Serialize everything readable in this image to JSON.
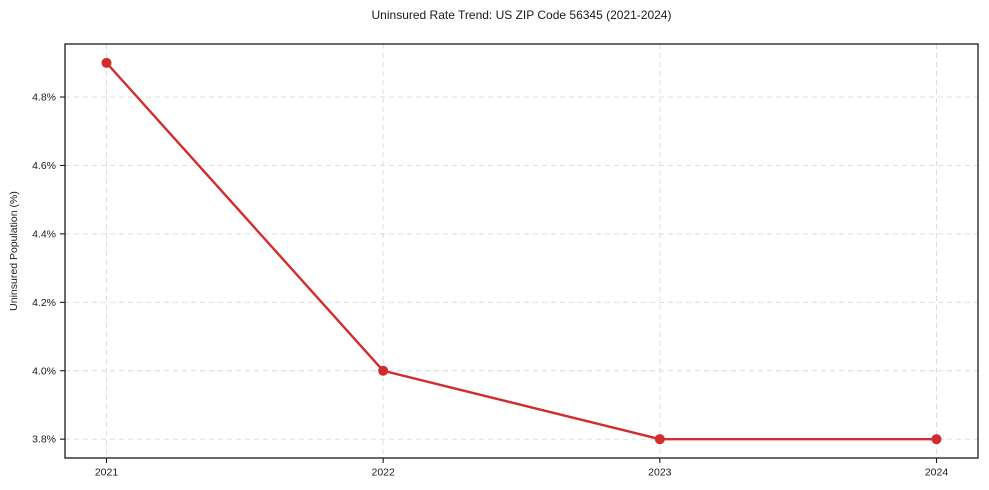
{
  "chart_data": {
    "type": "line",
    "title": "Uninsured Rate Trend: US ZIP Code 56345 (2021-2024)",
    "xlabel": "",
    "ylabel": "Uninsured Population (%)",
    "x": [
      2021,
      2022,
      2023,
      2024
    ],
    "values": [
      4.9,
      4.0,
      3.8,
      3.8
    ],
    "x_tick_labels": [
      "2021",
      "2022",
      "2023",
      "2024"
    ],
    "y_tick_values": [
      3.8,
      4.0,
      4.2,
      4.4,
      4.6,
      4.8
    ],
    "y_tick_labels": [
      "3.8%",
      "4.0%",
      "4.2%",
      "4.4%",
      "4.6%",
      "4.8%"
    ],
    "xlim": [
      2020.85,
      2024.15
    ],
    "ylim": [
      3.745,
      4.955
    ],
    "grid": true,
    "grid_style": "dashed",
    "legend": "none",
    "colors": {
      "line": "#d32c2c",
      "marker": "#d32c2c",
      "grid": "#d9d9d9",
      "axis": "#1a1a1a",
      "text": "#1a1a1a",
      "background": "#ffffff"
    }
  }
}
